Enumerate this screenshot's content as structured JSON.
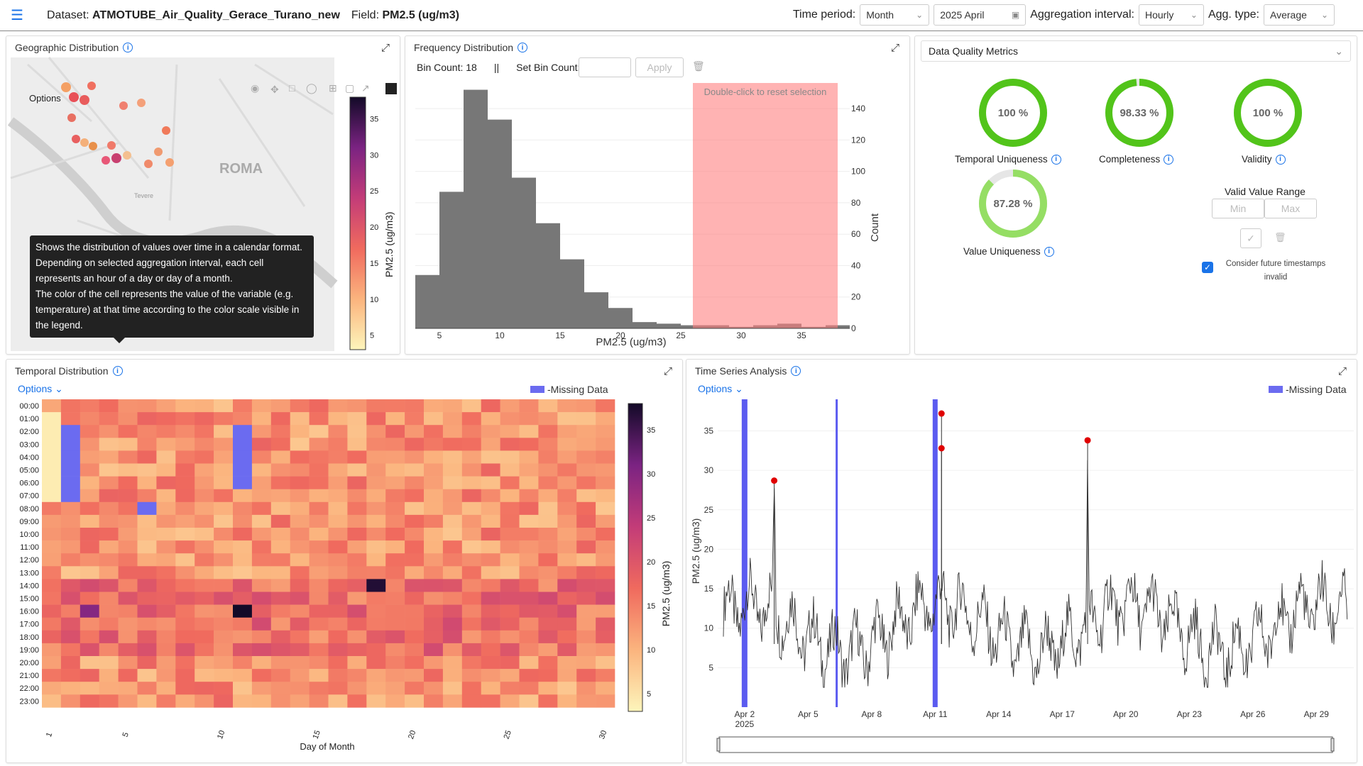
{
  "header": {
    "dataset_label": "Dataset:",
    "dataset_value": "ATMOTUBE_Air_Quality_Gerace_Turano_new",
    "field_label": "Field:",
    "field_value": "PM2.5 (ug/m3)",
    "time_period_label": "Time period:",
    "time_period_value": "Month",
    "date_value": "2025 April",
    "aggregation_label": "Aggregation interval:",
    "aggregation_value": "Hourly",
    "agg_type_label": "Agg. type:",
    "agg_type_value": "Average"
  },
  "geo": {
    "title": "Geographic Distribution",
    "options": "Options",
    "city_label": "ROMA",
    "river_label": "Tevere",
    "colorbar_title": "PM2.5 (ug/m3)",
    "colorbar_ticks": [
      "35",
      "30",
      "25",
      "20",
      "15",
      "10",
      "5"
    ]
  },
  "tooltip": {
    "lines": [
      "Shows the distribution of values over time in a calendar format.",
      "Depending on selected aggregation interval, each cell represents an hour of a day or day of a month.",
      "The color of the cell represents the value of the variable (e.g. temperature) at that time according to the color scale visible in the legend."
    ]
  },
  "freq": {
    "title": "Frequency Distribution",
    "bin_count": "Bin Count: 18",
    "separator": "||",
    "set_bin_label": "Set Bin Count:",
    "apply": "Apply",
    "reset_hint": "Double-click to reset selection",
    "xlabel": "PM2.5 (ug/m3)",
    "ylabel": "Count"
  },
  "quality": {
    "title": "Data Quality Metrics",
    "gauges": [
      {
        "label": "Temporal Uniqueness",
        "value": 100,
        "text": "100 %"
      },
      {
        "label": "Completeness",
        "value": 98.33,
        "text": "98.33 %"
      },
      {
        "label": "Validity",
        "value": 100,
        "text": "100 %"
      },
      {
        "label": "Value Uniqueness",
        "value": 87.28,
        "text": "87.28 %"
      }
    ],
    "valid_range_title": "Valid Value Range",
    "min_placeholder": "Min",
    "max_placeholder": "Max",
    "future_label_1": "Consider future timestamps",
    "future_label_2": "invalid",
    "gauge_color": "#52c41a"
  },
  "temporal": {
    "title": "Temporal Distribution",
    "options": "Options",
    "missing": "-Missing Data",
    "xlabel": "Day of Month",
    "colorbar_title": "PM2.5 (ug/m3)",
    "colorbar_ticks": [
      "35",
      "30",
      "25",
      "20",
      "15",
      "10",
      "5"
    ],
    "hours": [
      "00:00",
      "01:00",
      "02:00",
      "03:00",
      "04:00",
      "05:00",
      "06:00",
      "07:00",
      "08:00",
      "09:00",
      "10:00",
      "11:00",
      "12:00",
      "13:00",
      "14:00",
      "15:00",
      "16:00",
      "17:00",
      "18:00",
      "19:00",
      "20:00",
      "21:00",
      "22:00",
      "23:00"
    ],
    "day_ticks": [
      "1",
      "5",
      "10",
      "15",
      "20",
      "25",
      "30"
    ]
  },
  "timeseries": {
    "title": "Time Series Analysis",
    "options": "Options",
    "missing": "-Missing Data",
    "ylabel": "PM2.5 (ug/m3)",
    "x_ticks": [
      "Apr 2",
      "Apr 5",
      "Apr 8",
      "Apr 11",
      "Apr 14",
      "Apr 17",
      "Apr 20",
      "Apr 23",
      "Apr 26",
      "Apr 29"
    ],
    "x_sub": "2025",
    "y_ticks": [
      "5",
      "10",
      "15",
      "20",
      "25",
      "30",
      "35"
    ]
  },
  "chart_data": [
    {
      "type": "bar",
      "title": "Frequency Distribution",
      "xlabel": "PM2.5 (ug/m3)",
      "ylabel": "Count",
      "bin_edges": [
        3,
        5,
        7,
        9,
        11,
        13,
        15,
        17,
        19,
        21,
        23,
        25,
        27,
        29,
        31,
        33,
        35,
        37,
        39
      ],
      "values": [
        34,
        87,
        152,
        133,
        96,
        67,
        44,
        23,
        13,
        4,
        3,
        2,
        2,
        1,
        2,
        3,
        1,
        2
      ],
      "ylim": [
        0,
        150
      ],
      "y_ticks": [
        0,
        20,
        40,
        60,
        80,
        100,
        120,
        140
      ],
      "x_ticks": [
        5,
        10,
        15,
        20,
        25,
        30,
        35
      ],
      "selection_range": [
        26,
        38
      ]
    },
    {
      "type": "heatmap",
      "title": "Temporal Distribution",
      "xlabel": "Day of Month",
      "ylabel": "",
      "x": [
        1,
        2,
        3,
        4,
        5,
        6,
        7,
        8,
        9,
        10,
        11,
        12,
        13,
        14,
        15,
        16,
        17,
        18,
        19,
        20,
        21,
        22,
        23,
        24,
        25,
        26,
        27,
        28,
        29,
        30
      ],
      "y": [
        "00:00",
        "01:00",
        "02:00",
        "03:00",
        "04:00",
        "05:00",
        "06:00",
        "07:00",
        "08:00",
        "09:00",
        "10:00",
        "11:00",
        "12:00",
        "13:00",
        "14:00",
        "15:00",
        "16:00",
        "17:00",
        "18:00",
        "19:00",
        "20:00",
        "21:00",
        "22:00",
        "23:00"
      ],
      "zlim": [
        3,
        38
      ],
      "missing_cells": [
        [
          2,
          2
        ],
        [
          2,
          3
        ],
        [
          2,
          4
        ],
        [
          2,
          5
        ],
        [
          2,
          6
        ],
        [
          2,
          7
        ],
        [
          6,
          8
        ],
        [
          11,
          2
        ],
        [
          11,
          3
        ],
        [
          11,
          4
        ],
        [
          11,
          5
        ],
        [
          11,
          6
        ]
      ]
    },
    {
      "type": "line",
      "title": "Time Series Analysis",
      "ylabel": "PM2.5 (ug/m3)",
      "ylim": [
        0,
        39
      ],
      "x_ticks": [
        "Apr 2",
        "Apr 5",
        "Apr 8",
        "Apr 11",
        "Apr 14",
        "Apr 17",
        "Apr 20",
        "Apr 23",
        "Apr 26",
        "Apr 29"
      ],
      "missing_intervals": [
        [
          "Apr 2",
          "Apr 2"
        ],
        [
          "Apr 6",
          "Apr 6"
        ],
        [
          "Apr 11",
          "Apr 11"
        ]
      ],
      "anomalies": [
        {
          "x": "Apr 3",
          "y": 28.7
        },
        {
          "x": "Apr 11",
          "y": 37.2
        },
        {
          "x": "Apr 11",
          "y": 32.8
        },
        {
          "x": "Apr 18",
          "y": 33.8
        }
      ]
    }
  ]
}
